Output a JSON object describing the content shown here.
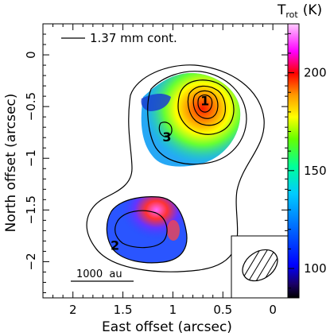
{
  "chart_data": {
    "type": "heatmap",
    "title": "",
    "xlabel": "East offset (arcsec)",
    "ylabel": "North offset (arcsec)",
    "xlim": [
      2.3,
      -0.15
    ],
    "ylim": [
      -2.35,
      0.3
    ],
    "x_ticks": [
      2,
      1.5,
      1,
      0.5,
      0
    ],
    "x_tick_labels": [
      "2",
      "1.5",
      "1",
      "0.5",
      "0"
    ],
    "y_ticks": [
      0,
      -0.5,
      -1,
      -1.5,
      -2
    ],
    "y_tick_labels": [
      "0",
      "−0.5",
      "−1",
      "−1.5",
      "−2"
    ],
    "colorbar": {
      "label_main": "T",
      "label_sub": "rot",
      "label_unit": "(K)",
      "range": [
        85,
        225
      ],
      "ticks": [
        100,
        150,
        200
      ],
      "tick_labels": [
        "100",
        "150",
        "200"
      ]
    },
    "contour_legend": "1.37 mm cont.",
    "scale_bar": {
      "label": "1000  au",
      "length_arcsec": 0.6
    },
    "sources": [
      {
        "label": "1",
        "x": 0.68,
        "y": -0.44
      },
      {
        "label": "2",
        "x": 1.58,
        "y": -1.84
      },
      {
        "label": "3",
        "x": 1.06,
        "y": -0.79
      }
    ],
    "temperature_regions": [
      {
        "name": "north",
        "fill": "#2ea3ff",
        "hotspot_x": 0.72,
        "hotspot_y": -0.43,
        "hotspot_color": "#ff2a00"
      },
      {
        "name": "south",
        "fill": "#2b4dff",
        "hotspot_x": 1.28,
        "hotspot_y": -1.53,
        "hotspot_color": "#ff66ff"
      }
    ],
    "beam": {
      "major_arcsec": 0.35,
      "minor_arcsec": 0.25,
      "pa_deg": -35
    }
  }
}
